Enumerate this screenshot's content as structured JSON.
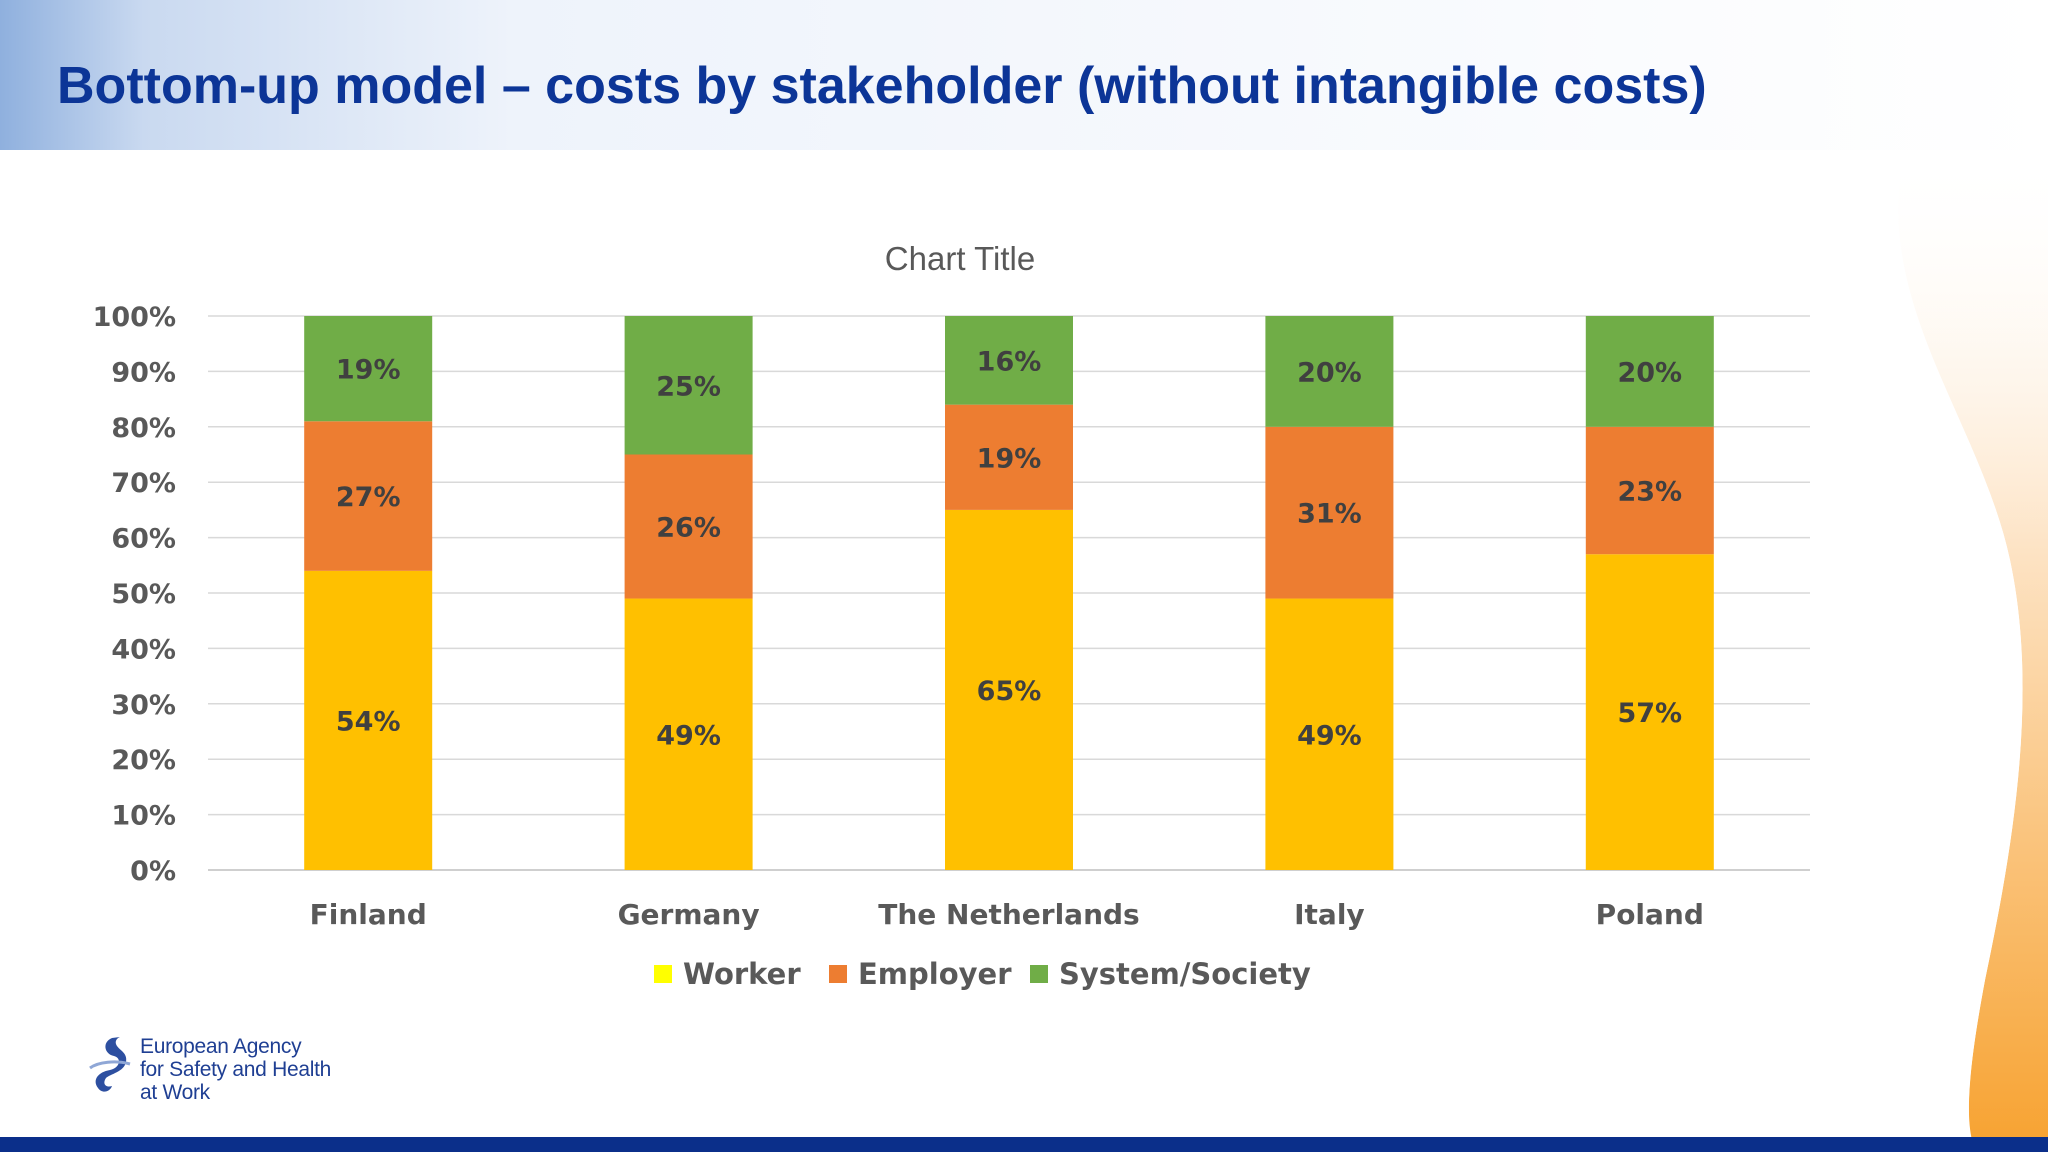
{
  "slide": {
    "title": "Bottom-up model – costs by stakeholder (without intangible costs)"
  },
  "brand": {
    "line1": "European Agency",
    "line2": "for Safety and Health",
    "line3": "at Work",
    "colors": {
      "title": "#0c3597",
      "bottom_bar": "#0b2f8a",
      "accent_orange": "#f7a230"
    }
  },
  "chart_data": {
    "type": "bar",
    "stacked": true,
    "percent_stacked": true,
    "title": "Chart Title",
    "categories": [
      "Finland",
      "Germany",
      "The Netherlands",
      "Italy",
      "Poland"
    ],
    "series": [
      {
        "name": "Worker",
        "values": [
          54,
          49,
          65,
          49,
          57
        ],
        "labels": [
          "54%",
          "49%",
          "65%",
          "49%",
          "57%"
        ],
        "color": "#ffc000",
        "legend_color": "#ffff00"
      },
      {
        "name": "Employer",
        "values": [
          27,
          26,
          19,
          31,
          23
        ],
        "labels": [
          "27%",
          "26%",
          "19%",
          "31%",
          "23%"
        ],
        "color": "#ed7d31",
        "legend_color": "#ed7d31"
      },
      {
        "name": "System/Society",
        "values": [
          19,
          25,
          16,
          20,
          20
        ],
        "labels": [
          "19%",
          "25%",
          "16%",
          "20%",
          "20%"
        ],
        "color": "#70ad47",
        "legend_color": "#70ad47"
      }
    ],
    "yticks": [
      "0%",
      "10%",
      "20%",
      "30%",
      "40%",
      "50%",
      "60%",
      "70%",
      "80%",
      "90%",
      "100%"
    ],
    "ylim": [
      0,
      100
    ],
    "grid": true,
    "legend_position": "bottom"
  }
}
